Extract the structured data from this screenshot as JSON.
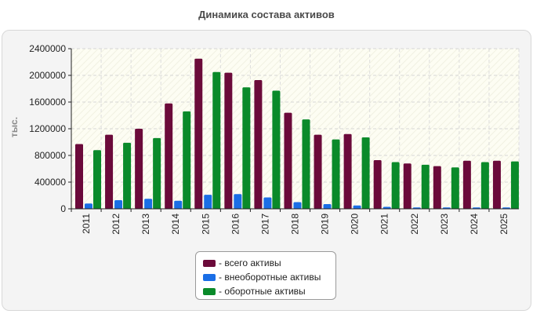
{
  "chart_data": {
    "type": "bar",
    "title": "Динамика состава активов",
    "ylabel": "тыс.",
    "xlabel": "",
    "ylim": [
      0,
      2400000
    ],
    "yticks": [
      0,
      400000,
      800000,
      1200000,
      1600000,
      2000000,
      2400000
    ],
    "ytick_labels": [
      "0",
      "400000",
      "800000",
      "1200000",
      "1600000",
      "2000000",
      "2400000"
    ],
    "categories": [
      "2011",
      "2012",
      "2013",
      "2014",
      "2015",
      "2016",
      "2017",
      "2018",
      "2019",
      "2020",
      "2021",
      "2022",
      "2023",
      "2024",
      "2025"
    ],
    "grid": true,
    "legend_position": "bottom",
    "series": [
      {
        "name": "- всего активы",
        "color": "#6b0a3a",
        "values": [
          970000,
          1110000,
          1200000,
          1580000,
          2250000,
          2040000,
          1930000,
          1440000,
          1110000,
          1120000,
          730000,
          680000,
          640000,
          720000,
          720000
        ]
      },
      {
        "name": "- внеоборотные активы",
        "color": "#1a6ee6",
        "values": [
          80000,
          130000,
          150000,
          120000,
          210000,
          220000,
          170000,
          100000,
          70000,
          50000,
          30000,
          20000,
          20000,
          20000,
          20000
        ]
      },
      {
        "name": "- оборотные активы",
        "color": "#0a8a2a",
        "values": [
          880000,
          990000,
          1060000,
          1460000,
          2050000,
          1820000,
          1770000,
          1340000,
          1040000,
          1070000,
          700000,
          660000,
          620000,
          700000,
          710000
        ]
      }
    ]
  }
}
